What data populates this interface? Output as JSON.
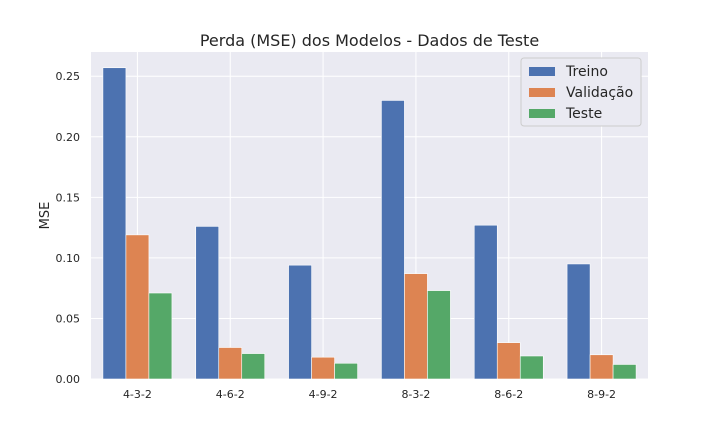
{
  "chart_data": {
    "type": "bar",
    "title": "Perda (MSE) dos Modelos - Dados de Teste",
    "xlabel": "",
    "ylabel": "MSE",
    "ylim": [
      0,
      0.27
    ],
    "yticks": [
      "0.00",
      "0.05",
      "0.10",
      "0.15",
      "0.20",
      "0.25"
    ],
    "grid": true,
    "legend_position": "top-right",
    "categories": [
      "4-3-2",
      "4-6-2",
      "4-9-2",
      "8-3-2",
      "8-6-2",
      "8-9-2"
    ],
    "series": [
      {
        "name": "Treino",
        "color": "#4c72b0",
        "values": [
          0.257,
          0.126,
          0.094,
          0.23,
          0.127,
          0.095
        ]
      },
      {
        "name": "Validação",
        "color": "#dd8452",
        "values": [
          0.119,
          0.026,
          0.018,
          0.087,
          0.03,
          0.02
        ]
      },
      {
        "name": "Teste",
        "color": "#55a868",
        "values": [
          0.071,
          0.021,
          0.013,
          0.073,
          0.019,
          0.012
        ]
      }
    ],
    "colors": {
      "plot_background": "#eaeaf2",
      "grid": "#ffffff"
    }
  }
}
